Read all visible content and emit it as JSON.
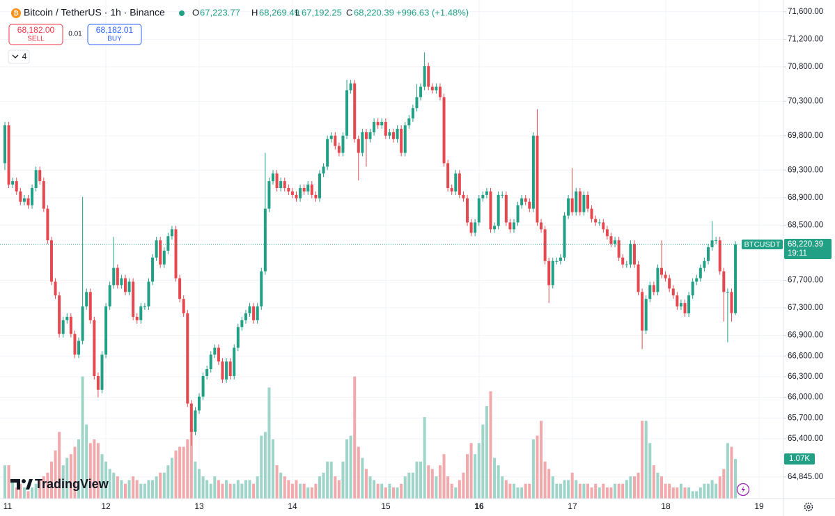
{
  "header": {
    "symbol": "Bitcoin / TetherUS · 1h · Binance",
    "o_label": "O",
    "open": "67,223.77",
    "h_label": "H",
    "high": "68,269.49",
    "l_label": "L",
    "low": "67,192.25",
    "c_label": "C",
    "close": "68,220.39",
    "change": "+996.63 (+1.48%)"
  },
  "trade": {
    "sell_price": "68,182.00",
    "sell": "SELL",
    "spread": "0.01",
    "buy_price": "68,182.01",
    "buy": "BUY",
    "indicators_count": "4"
  },
  "branding": "TradingView",
  "chart_data": {
    "type": "candlestick",
    "symbol_tag": "BTCUSDT",
    "last_price_label": "68,220.39",
    "countdown": "19:11",
    "volume_label": "1.07K",
    "x_labels": [
      "11",
      "12",
      "13",
      "14",
      "15",
      "16",
      "17",
      "18",
      "19"
    ],
    "up_color": "#22a086",
    "down_color": "#e5484f",
    "volume_up_color": "#9fd4c9",
    "volume_down_color": "#f2a9ab",
    "ylim": [
      64530,
      71770
    ],
    "yticks": [
      {
        "value": 71600,
        "label": "71,600.00"
      },
      {
        "value": 71200,
        "label": "71,200.00"
      },
      {
        "value": 70800,
        "label": "70,800.00"
      },
      {
        "value": 70300,
        "label": "70,300.00"
      },
      {
        "value": 69800,
        "label": "69,800.00"
      },
      {
        "value": 69300,
        "label": "69,300.00"
      },
      {
        "value": 68900,
        "label": "68,900.00"
      },
      {
        "value": 68500,
        "label": "68,500.00"
      },
      {
        "value": 67700,
        "label": "67,700.00"
      },
      {
        "value": 67300,
        "label": "67,300.00"
      },
      {
        "value": 66900,
        "label": "66,900.00"
      },
      {
        "value": 66600,
        "label": "66,600.00"
      },
      {
        "value": 66300,
        "label": "66,300.00"
      },
      {
        "value": 66000,
        "label": "66,000.00"
      },
      {
        "value": 65700,
        "label": "65,700.00"
      },
      {
        "value": 65400,
        "label": "65,400.00"
      },
      {
        "value": 64845,
        "label": "64,845.00"
      }
    ],
    "grid": true,
    "open": [
      69400,
      69950,
      69090,
      69140,
      68990,
      68840,
      68890,
      68790,
      69040,
      69300,
      69140,
      68740,
      68280,
      67680,
      67480,
      66920,
      67120,
      67170,
      66920,
      66620,
      66820,
      67320,
      67530,
      67120,
      66310,
      66110,
      66620,
      67320,
      67630,
      67880,
      67630,
      67730,
      67530,
      67680,
      67170,
      67120,
      67320,
      67320,
      67680,
      68030,
      68280,
      67930,
      68130,
      68340,
      68440,
      67730,
      67430,
      67220,
      65910,
      65500,
      65810,
      66010,
      66310,
      66410,
      66620,
      66720,
      66520,
      66260,
      66520,
      66310,
      66720,
      67020,
      67120,
      67220,
      67320,
      67120,
      67320,
      67830,
      68740,
      69140,
      69250,
      69040,
      69140,
      69040,
      68990,
      68940,
      68890,
      69040,
      68990,
      69090,
      68940,
      68890,
      69250,
      69350,
      69750,
      69800,
      69650,
      69550,
      69800,
      70460,
      70560,
      69750,
      69550,
      69850,
      69750,
      69850,
      70000,
      69950,
      70000,
      69800,
      69850,
      69750,
      69900,
      69550,
      69950,
      70050,
      70200,
      70360,
      70510,
      70810,
      70510,
      70460,
      70510,
      70360,
      69400,
      69040,
      68990,
      69250,
      68940,
      68890,
      68540,
      68390,
      68540,
      68890,
      68940,
      68990,
      68440,
      68490,
      68940,
      68940,
      68540,
      68440,
      68540,
      68790,
      68890,
      68840,
      68740,
      69800,
      68540,
      68440,
      67980,
      67630,
      67980,
      67980,
      68030,
      68640,
      68890,
      68690,
      68990,
      68690,
      68940,
      68740,
      68590,
      68540,
      68540,
      68440,
      68340,
      68230,
      68280,
      68030,
      67930,
      67930,
      68230,
      67930,
      67530,
      66970,
      67430,
      67630,
      67530,
      67880,
      67780,
      67730,
      67580,
      67480,
      67320,
      67370,
      67220,
      67480,
      67680,
      67730,
      67880,
      67980,
      68180,
      68280,
      68280,
      67830,
      67530,
      67530,
      67223.77
    ],
    "high": [
      70000,
      70000,
      69190,
      69190,
      69040,
      68940,
      68940,
      69090,
      69350,
      69350,
      69190,
      68790,
      68330,
      67730,
      67530,
      67170,
      67220,
      67220,
      66970,
      66870,
      68910,
      67580,
      67580,
      67170,
      66360,
      66670,
      67370,
      67680,
      68330,
      67930,
      67780,
      67780,
      67730,
      67730,
      67220,
      67370,
      67370,
      67730,
      68080,
      68330,
      68330,
      68180,
      68390,
      68490,
      68490,
      67780,
      67480,
      67270,
      65960,
      65860,
      66060,
      66360,
      66460,
      66670,
      66770,
      66770,
      66570,
      66570,
      66570,
      66770,
      67070,
      67170,
      67270,
      67370,
      67370,
      67370,
      67880,
      69550,
      69190,
      69300,
      69300,
      69190,
      69190,
      69090,
      69040,
      68990,
      69090,
      69090,
      69140,
      69140,
      68990,
      69300,
      69400,
      69800,
      69850,
      69850,
      69700,
      69850,
      70610,
      70610,
      70610,
      69800,
      69900,
      69900,
      69900,
      70050,
      70050,
      70050,
      70050,
      69900,
      69900,
      69950,
      69950,
      70000,
      70100,
      70250,
      70550,
      70560,
      71010,
      70860,
      70560,
      70560,
      70560,
      70410,
      69450,
      69090,
      69300,
      69300,
      68990,
      68940,
      68590,
      68590,
      68940,
      68990,
      69040,
      69040,
      68540,
      68990,
      68990,
      68990,
      68590,
      68590,
      68840,
      68940,
      68940,
      68890,
      69850,
      70185,
      68590,
      68490,
      68030,
      68030,
      68030,
      68080,
      68690,
      68940,
      69330,
      69040,
      69040,
      68990,
      68990,
      68790,
      68640,
      68590,
      68590,
      68490,
      68390,
      68330,
      68330,
      68080,
      67980,
      68280,
      68280,
      67980,
      67580,
      67480,
      67680,
      67680,
      67930,
      68280,
      67830,
      67780,
      67630,
      67530,
      67420,
      67420,
      67530,
      67730,
      67780,
      67930,
      68030,
      68230,
      68560,
      68330,
      68330,
      67880,
      67580,
      67580,
      68269.49
    ],
    "low": [
      69300,
      69040,
      69040,
      68940,
      68790,
      68790,
      68740,
      68740,
      68990,
      69090,
      68690,
      68230,
      67630,
      67430,
      66870,
      66870,
      67070,
      66870,
      66570,
      66570,
      66770,
      67270,
      67070,
      66260,
      66000,
      66060,
      66570,
      67270,
      67580,
      67580,
      67580,
      67480,
      67480,
      67120,
      67070,
      67070,
      67270,
      67270,
      67630,
      67980,
      67880,
      67880,
      68080,
      68290,
      67680,
      67380,
      67170,
      65860,
      65300,
      65450,
      65760,
      65960,
      66260,
      66360,
      66570,
      66470,
      66210,
      66210,
      66260,
      66260,
      66670,
      66970,
      67070,
      67170,
      67070,
      67070,
      67270,
      67780,
      68690,
      69090,
      68990,
      68990,
      68990,
      68940,
      68890,
      68840,
      68840,
      68940,
      68940,
      68890,
      68840,
      68840,
      69200,
      69300,
      69700,
      69600,
      69500,
      69500,
      69750,
      70410,
      69700,
      69150,
      69500,
      69350,
      69700,
      69800,
      69900,
      69900,
      69750,
      69750,
      69700,
      69700,
      69500,
      69500,
      69900,
      70000,
      70150,
      70310,
      70460,
      70460,
      70410,
      70410,
      70310,
      69350,
      68990,
      68940,
      68940,
      68890,
      68840,
      68490,
      68340,
      68340,
      68490,
      68840,
      68890,
      68390,
      68390,
      68440,
      68890,
      68490,
      68390,
      68390,
      68490,
      68740,
      68790,
      68690,
      68690,
      68490,
      68390,
      67930,
      67370,
      67580,
      67930,
      67930,
      67980,
      68590,
      68640,
      68640,
      68640,
      68640,
      68690,
      68540,
      68490,
      68490,
      68390,
      68290,
      68180,
      68180,
      67980,
      67880,
      67880,
      67880,
      67880,
      67480,
      66700,
      66920,
      67380,
      67480,
      67480,
      67730,
      67680,
      67530,
      67430,
      67270,
      67270,
      67170,
      67170,
      67430,
      67630,
      67680,
      67830,
      67930,
      68130,
      68230,
      67780,
      67100,
      66800,
      67100,
      67192.25
    ],
    "close": [
      69950,
      69090,
      69140,
      68990,
      68840,
      68890,
      68790,
      69040,
      69300,
      69140,
      68740,
      68280,
      67680,
      67480,
      66920,
      67120,
      67170,
      66920,
      66620,
      66820,
      67320,
      67530,
      67120,
      66310,
      66110,
      66620,
      67320,
      67630,
      67880,
      67630,
      67730,
      67530,
      67680,
      67170,
      67120,
      67320,
      67320,
      67680,
      68030,
      68280,
      67930,
      68130,
      68340,
      68440,
      67730,
      67430,
      67220,
      65910,
      65500,
      65810,
      66010,
      66310,
      66410,
      66620,
      66720,
      66520,
      66260,
      66520,
      66310,
      66720,
      67020,
      67120,
      67220,
      67320,
      67120,
      67320,
      67830,
      68740,
      69140,
      69250,
      69040,
      69140,
      69040,
      68990,
      68940,
      68890,
      69040,
      68990,
      69090,
      68940,
      68890,
      69250,
      69350,
      69750,
      69800,
      69650,
      69550,
      69800,
      70460,
      70560,
      69750,
      69550,
      69850,
      69750,
      69850,
      70000,
      69950,
      70000,
      69800,
      69850,
      69750,
      69900,
      69550,
      69950,
      70050,
      70200,
      70360,
      70510,
      70810,
      70510,
      70460,
      70510,
      70360,
      69400,
      69040,
      68990,
      69250,
      68940,
      68890,
      68540,
      68390,
      68540,
      68890,
      68940,
      68990,
      68440,
      68490,
      68940,
      68940,
      68540,
      68440,
      68540,
      68790,
      68890,
      68840,
      68740,
      69800,
      68540,
      68440,
      67980,
      67630,
      67980,
      67980,
      68030,
      68640,
      68890,
      68690,
      68990,
      68690,
      68940,
      68740,
      68590,
      68540,
      68540,
      68440,
      68340,
      68230,
      68280,
      68030,
      67930,
      67930,
      68230,
      67930,
      67530,
      66970,
      67430,
      67630,
      67530,
      67880,
      67780,
      67730,
      67580,
      67480,
      67320,
      67370,
      67220,
      67480,
      67680,
      67730,
      67880,
      67980,
      68180,
      68280,
      68280,
      67830,
      67530,
      67530,
      67223.77,
      68220.39
    ],
    "volume": [
      900,
      900,
      500,
      300,
      400,
      300,
      200,
      300,
      400,
      500,
      600,
      700,
      1000,
      1300,
      1800,
      900,
      1100,
      1200,
      1400,
      1600,
      3300,
      2000,
      1500,
      1600,
      1500,
      1200,
      1000,
      800,
      700,
      600,
      500,
      400,
      500,
      600,
      500,
      400,
      400,
      500,
      500,
      600,
      700,
      700,
      900,
      1100,
      1300,
      1400,
      1400,
      1600,
      1900,
      1000,
      800,
      600,
      500,
      400,
      600,
      500,
      400,
      500,
      400,
      400,
      500,
      400,
      500,
      500,
      400,
      600,
      1700,
      1800,
      3000,
      1600,
      900,
      700,
      600,
      500,
      400,
      500,
      400,
      400,
      300,
      300,
      400,
      600,
      700,
      1000,
      1000,
      600,
      500,
      1000,
      1600,
      1700,
      3300,
      1400,
      1100,
      800,
      600,
      500,
      400,
      400,
      300,
      400,
      300,
      300,
      400,
      600,
      700,
      700,
      1000,
      1000,
      2200,
      900,
      800,
      600,
      900,
      1200,
      600,
      400,
      300,
      500,
      700,
      1200,
      1500,
      1200,
      1500,
      2000,
      2500,
      2900,
      1100,
      900,
      600,
      500,
      400,
      400,
      300,
      300,
      400,
      400,
      1600,
      1700,
      2100,
      1000,
      800,
      600,
      400,
      400,
      500,
      500,
      700,
      500,
      400,
      400,
      400,
      300,
      400,
      300,
      400,
      300,
      300,
      400,
      400,
      400,
      500,
      600,
      600,
      700,
      2100,
      2100,
      1500,
      900,
      700,
      600,
      400,
      400,
      300,
      300,
      400,
      300,
      300,
      200,
      200,
      300,
      400,
      400,
      500,
      400,
      600,
      800,
      1500,
      1400,
      1070
    ]
  }
}
